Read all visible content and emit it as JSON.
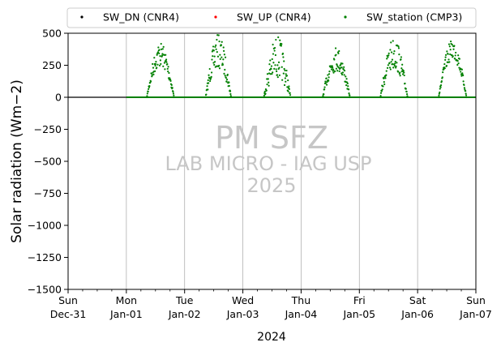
{
  "chart_data": {
    "type": "scatter",
    "title": "",
    "xlabel": "2024",
    "ylabel": "Solar radiation (Wm−2)",
    "ylim": [
      -1500,
      500
    ],
    "yticks": [
      500,
      250,
      0,
      -250,
      -500,
      -750,
      -1000,
      -1250,
      -1500
    ],
    "xlim": [
      "2023-12-31",
      "2024-01-07"
    ],
    "xticks": [
      {
        "date": "2023-12-31",
        "day": "Sun",
        "label": "Dec-31"
      },
      {
        "date": "2024-01-01",
        "day": "Mon",
        "label": "Jan-01"
      },
      {
        "date": "2024-01-02",
        "day": "Tue",
        "label": "Jan-02"
      },
      {
        "date": "2024-01-03",
        "day": "Wed",
        "label": "Jan-03"
      },
      {
        "date": "2024-01-04",
        "day": "Thu",
        "label": "Jan-04"
      },
      {
        "date": "2024-01-05",
        "day": "Fri",
        "label": "Jan-05"
      },
      {
        "date": "2024-01-06",
        "day": "Sat",
        "label": "Jan-06"
      },
      {
        "date": "2024-01-07",
        "day": "Sun",
        "label": "Jan-07"
      }
    ],
    "grid": "x",
    "legend": "top",
    "watermark": {
      "line1": "PM SFZ",
      "line2": "LAB MICRO - IAG USP",
      "line3": "2025"
    },
    "series": [
      {
        "name": "SW_DN (CNR4)",
        "color": "#000000",
        "marker": "dot",
        "values": []
      },
      {
        "name": "SW_UP (CNR4)",
        "color": "#ff0000",
        "marker": "dot",
        "values": []
      },
      {
        "name": "SW_station (CMP3)",
        "color": "#008000",
        "marker": "dot",
        "baseline": {
          "from": "2024-01-01",
          "to": "2024-01-07",
          "value": 0
        },
        "days": [
          {
            "date": "2024-01-01",
            "sunrise": 0.35,
            "sunset": 0.82,
            "peak": 430,
            "cloud": 0.45
          },
          {
            "date": "2024-01-02",
            "sunrise": 0.36,
            "sunset": 0.8,
            "peak": 490,
            "cloud": 0.55
          },
          {
            "date": "2024-01-03",
            "sunrise": 0.36,
            "sunset": 0.82,
            "peak": 480,
            "cloud": 0.7
          },
          {
            "date": "2024-01-04",
            "sunrise": 0.37,
            "sunset": 0.84,
            "peak": 400,
            "cloud": 0.5
          },
          {
            "date": "2024-01-05",
            "sunrise": 0.36,
            "sunset": 0.83,
            "peak": 470,
            "cloud": 0.55
          },
          {
            "date": "2024-01-06",
            "sunrise": 0.36,
            "sunset": 0.84,
            "peak": 450,
            "cloud": 0.35
          }
        ]
      }
    ]
  }
}
